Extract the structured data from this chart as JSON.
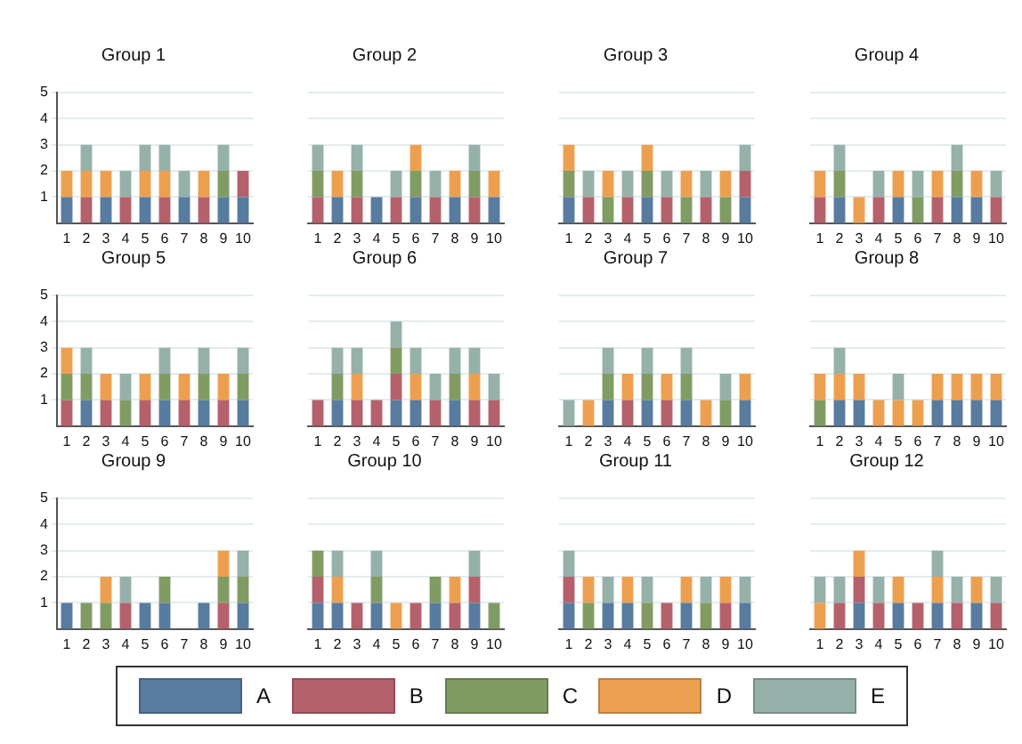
{
  "chart_data": [
    {
      "type": "bar",
      "title": "Group 1",
      "categories": [
        "1",
        "2",
        "3",
        "4",
        "5",
        "6",
        "7",
        "8",
        "9",
        "10"
      ],
      "stacked": true,
      "ylim": [
        0,
        5
      ],
      "yticks": [
        1,
        2,
        3,
        4,
        5
      ],
      "grid": "y",
      "legend": "bottom",
      "series": [
        {
          "name": "A",
          "color": "#587ba0",
          "values": [
            1,
            0,
            1,
            0,
            1,
            0,
            1,
            0,
            1,
            1
          ]
        },
        {
          "name": "B",
          "color": "#b5616b",
          "values": [
            0,
            1,
            0,
            1,
            0,
            1,
            0,
            1,
            0,
            1
          ]
        },
        {
          "name": "C",
          "color": "#809c63",
          "values": [
            0,
            0,
            0,
            0,
            0,
            0,
            0,
            0,
            1,
            0
          ]
        },
        {
          "name": "D",
          "color": "#eca04f",
          "values": [
            1,
            1,
            1,
            0,
            1,
            1,
            0,
            1,
            0,
            0
          ]
        },
        {
          "name": "E",
          "color": "#96b0aa",
          "values": [
            0,
            1,
            0,
            1,
            1,
            1,
            1,
            0,
            1,
            0
          ]
        }
      ]
    },
    {
      "type": "bar",
      "title": "Group 2",
      "categories": [
        "1",
        "2",
        "3",
        "4",
        "5",
        "6",
        "7",
        "8",
        "9",
        "10"
      ],
      "stacked": true,
      "ylim": [
        0,
        5
      ],
      "yticks": [
        1,
        2,
        3,
        4,
        5
      ],
      "grid": "y",
      "tick_labels": "x",
      "series": [
        {
          "color": "#587ba0",
          "values": [
            0,
            1,
            0,
            1,
            0,
            1,
            0,
            1,
            0,
            1
          ]
        },
        {
          "color": "#b5616b",
          "values": [
            1,
            0,
            1,
            0,
            1,
            0,
            1,
            0,
            1,
            0
          ]
        },
        {
          "color": "#809c63",
          "values": [
            1,
            0,
            1,
            0,
            0,
            1,
            0,
            0,
            1,
            0
          ]
        },
        {
          "color": "#eca04f",
          "values": [
            0,
            1,
            0,
            0,
            0,
            1,
            0,
            1,
            0,
            1
          ]
        },
        {
          "color": "#96b0aa",
          "values": [
            1,
            0,
            1,
            0,
            1,
            0,
            1,
            0,
            1,
            0
          ]
        }
      ]
    },
    {
      "type": "bar",
      "title": "Group 3",
      "categories": [
        "1",
        "2",
        "3",
        "4",
        "5",
        "6",
        "7",
        "8",
        "9",
        "10"
      ],
      "stacked": true,
      "ylim": [
        0,
        5
      ],
      "yticks": [
        1,
        2,
        3,
        4,
        5
      ],
      "grid": "y",
      "tick_labels": "x",
      "series": [
        {
          "color": "#587ba0",
          "values": [
            1,
            0,
            0,
            0,
            1,
            0,
            0,
            0,
            0,
            1
          ]
        },
        {
          "color": "#b5616b",
          "values": [
            0,
            1,
            0,
            1,
            0,
            1,
            0,
            1,
            0,
            1
          ]
        },
        {
          "color": "#809c63",
          "values": [
            1,
            0,
            1,
            0,
            1,
            0,
            1,
            0,
            1,
            0
          ]
        },
        {
          "color": "#eca04f",
          "values": [
            1,
            0,
            1,
            0,
            1,
            0,
            1,
            0,
            1,
            0
          ]
        },
        {
          "color": "#96b0aa",
          "values": [
            0,
            1,
            0,
            1,
            0,
            1,
            0,
            1,
            0,
            1
          ]
        }
      ]
    },
    {
      "type": "bar",
      "title": "Group 4",
      "categories": [
        "1",
        "2",
        "3",
        "4",
        "5",
        "6",
        "7",
        "8",
        "9",
        "10"
      ],
      "stacked": true,
      "ylim": [
        0,
        5
      ],
      "yticks": [
        1,
        2,
        3,
        4,
        5
      ],
      "grid": "y",
      "tick_labels": "x",
      "series": [
        {
          "color": "#587ba0",
          "values": [
            0,
            1,
            0,
            0,
            1,
            0,
            0,
            1,
            1,
            0
          ]
        },
        {
          "color": "#b5616b",
          "values": [
            1,
            0,
            0,
            1,
            0,
            0,
            1,
            0,
            0,
            1
          ]
        },
        {
          "color": "#809c63",
          "values": [
            0,
            1,
            0,
            0,
            0,
            1,
            0,
            1,
            0,
            0
          ]
        },
        {
          "color": "#eca04f",
          "values": [
            1,
            0,
            1,
            0,
            1,
            0,
            1,
            0,
            1,
            0
          ]
        },
        {
          "color": "#96b0aa",
          "values": [
            0,
            1,
            0,
            1,
            0,
            1,
            0,
            1,
            0,
            1
          ]
        }
      ]
    },
    {
      "type": "bar",
      "title": "Group 5",
      "categories": [
        "1",
        "2",
        "3",
        "4",
        "5",
        "6",
        "7",
        "8",
        "9",
        "10"
      ],
      "stacked": true,
      "ylim": [
        0,
        5
      ],
      "yticks": [
        1,
        2,
        3,
        4,
        5
      ],
      "grid": "y",
      "series": [
        {
          "color": "#587ba0",
          "values": [
            0,
            1,
            0,
            0,
            0,
            1,
            0,
            1,
            0,
            1
          ]
        },
        {
          "color": "#b5616b",
          "values": [
            1,
            0,
            1,
            0,
            1,
            0,
            1,
            0,
            1,
            0
          ]
        },
        {
          "color": "#809c63",
          "values": [
            1,
            1,
            0,
            1,
            0,
            1,
            0,
            1,
            0,
            1
          ]
        },
        {
          "color": "#eca04f",
          "values": [
            1,
            0,
            1,
            0,
            1,
            0,
            1,
            0,
            1,
            0
          ]
        },
        {
          "color": "#96b0aa",
          "values": [
            0,
            1,
            0,
            1,
            0,
            1,
            0,
            1,
            0,
            1
          ]
        }
      ]
    },
    {
      "type": "bar",
      "title": "Group 6",
      "categories": [
        "1",
        "2",
        "3",
        "4",
        "5",
        "6",
        "7",
        "8",
        "9",
        "10"
      ],
      "stacked": true,
      "ylim": [
        0,
        5
      ],
      "yticks": [
        1,
        2,
        3,
        4,
        5
      ],
      "grid": "y",
      "tick_labels": "x",
      "series": [
        {
          "color": "#587ba0",
          "values": [
            0,
            1,
            0,
            0,
            1,
            1,
            0,
            1,
            0,
            0
          ]
        },
        {
          "color": "#b5616b",
          "values": [
            1,
            0,
            1,
            1,
            1,
            0,
            1,
            0,
            1,
            1
          ]
        },
        {
          "color": "#809c63",
          "values": [
            0,
            1,
            0,
            0,
            1,
            0,
            0,
            1,
            0,
            0
          ]
        },
        {
          "color": "#eca04f",
          "values": [
            0,
            0,
            1,
            0,
            0,
            1,
            0,
            0,
            1,
            0
          ]
        },
        {
          "color": "#96b0aa",
          "values": [
            0,
            1,
            1,
            0,
            1,
            1,
            1,
            1,
            1,
            1
          ]
        }
      ]
    },
    {
      "type": "bar",
      "title": "Group 7",
      "categories": [
        "1",
        "2",
        "3",
        "4",
        "5",
        "6",
        "7",
        "8",
        "9",
        "10"
      ],
      "stacked": true,
      "ylim": [
        0,
        5
      ],
      "yticks": [
        1,
        2,
        3,
        4,
        5
      ],
      "grid": "y",
      "tick_labels": "x",
      "series": [
        {
          "color": "#587ba0",
          "values": [
            0,
            0,
            1,
            0,
            1,
            0,
            1,
            0,
            0,
            1
          ]
        },
        {
          "color": "#b5616b",
          "values": [
            0,
            0,
            0,
            1,
            0,
            1,
            0,
            0,
            0,
            0
          ]
        },
        {
          "color": "#809c63",
          "values": [
            0,
            0,
            1,
            0,
            1,
            0,
            1,
            0,
            1,
            0
          ]
        },
        {
          "color": "#eca04f",
          "values": [
            0,
            1,
            0,
            1,
            0,
            1,
            0,
            1,
            0,
            1
          ]
        },
        {
          "color": "#96b0aa",
          "values": [
            1,
            0,
            1,
            0,
            1,
            0,
            1,
            0,
            1,
            0
          ]
        }
      ]
    },
    {
      "type": "bar",
      "title": "Group 8",
      "categories": [
        "1",
        "2",
        "3",
        "4",
        "5",
        "6",
        "7",
        "8",
        "9",
        "10"
      ],
      "stacked": true,
      "ylim": [
        0,
        5
      ],
      "yticks": [
        1,
        2,
        3,
        4,
        5
      ],
      "grid": "y",
      "tick_labels": "x",
      "series": [
        {
          "color": "#587ba0",
          "values": [
            0,
            1,
            1,
            0,
            0,
            0,
            1,
            1,
            1,
            1
          ]
        },
        {
          "color": "#b5616b",
          "values": [
            0,
            0,
            0,
            0,
            0,
            0,
            0,
            0,
            0,
            0
          ]
        },
        {
          "color": "#809c63",
          "values": [
            1,
            0,
            0,
            0,
            0,
            0,
            0,
            0,
            0,
            0
          ]
        },
        {
          "color": "#eca04f",
          "values": [
            1,
            1,
            1,
            1,
            1,
            1,
            1,
            1,
            1,
            1
          ]
        },
        {
          "color": "#96b0aa",
          "values": [
            0,
            1,
            0,
            0,
            1,
            0,
            0,
            0,
            0,
            0
          ]
        }
      ]
    },
    {
      "type": "bar",
      "title": "Group 9",
      "categories": [
        "1",
        "2",
        "3",
        "4",
        "5",
        "6",
        "7",
        "8",
        "9",
        "10"
      ],
      "stacked": true,
      "ylim": [
        0,
        5
      ],
      "yticks": [
        1,
        2,
        3,
        4,
        5
      ],
      "grid": "y",
      "series": [
        {
          "color": "#587ba0",
          "values": [
            1,
            0,
            0,
            0,
            1,
            1,
            0,
            1,
            0,
            1
          ]
        },
        {
          "color": "#b5616b",
          "values": [
            0,
            0,
            0,
            1,
            0,
            0,
            0,
            0,
            1,
            0
          ]
        },
        {
          "color": "#809c63",
          "values": [
            0,
            1,
            1,
            0,
            0,
            1,
            0,
            0,
            1,
            1
          ]
        },
        {
          "color": "#eca04f",
          "values": [
            0,
            0,
            1,
            0,
            0,
            0,
            0,
            0,
            1,
            0
          ]
        },
        {
          "color": "#96b0aa",
          "values": [
            0,
            0,
            0,
            1,
            0,
            0,
            0,
            0,
            0,
            1
          ]
        }
      ]
    },
    {
      "type": "bar",
      "title": "Group 10",
      "categories": [
        "1",
        "2",
        "3",
        "4",
        "5",
        "6",
        "7",
        "8",
        "9",
        "10"
      ],
      "stacked": true,
      "ylim": [
        0,
        5
      ],
      "yticks": [
        1,
        2,
        3,
        4,
        5
      ],
      "grid": "y",
      "tick_labels": "x",
      "series": [
        {
          "color": "#587ba0",
          "values": [
            1,
            1,
            0,
            1,
            0,
            0,
            1,
            0,
            1,
            0
          ]
        },
        {
          "color": "#b5616b",
          "values": [
            1,
            0,
            1,
            0,
            0,
            1,
            0,
            1,
            1,
            0
          ]
        },
        {
          "color": "#809c63",
          "values": [
            1,
            0,
            0,
            1,
            0,
            0,
            1,
            0,
            0,
            1
          ]
        },
        {
          "color": "#eca04f",
          "values": [
            0,
            1,
            0,
            0,
            1,
            0,
            0,
            1,
            0,
            0
          ]
        },
        {
          "color": "#96b0aa",
          "values": [
            0,
            1,
            0,
            1,
            0,
            0,
            0,
            0,
            1,
            0
          ]
        }
      ]
    },
    {
      "type": "bar",
      "title": "Group 11",
      "categories": [
        "1",
        "2",
        "3",
        "4",
        "5",
        "6",
        "7",
        "8",
        "9",
        "10"
      ],
      "stacked": true,
      "ylim": [
        0,
        5
      ],
      "yticks": [
        1,
        2,
        3,
        4,
        5
      ],
      "grid": "y",
      "tick_labels": "x",
      "series": [
        {
          "color": "#587ba0",
          "values": [
            1,
            0,
            1,
            1,
            0,
            0,
            1,
            0,
            0,
            1
          ]
        },
        {
          "color": "#b5616b",
          "values": [
            1,
            0,
            0,
            0,
            0,
            1,
            0,
            0,
            1,
            0
          ]
        },
        {
          "color": "#809c63",
          "values": [
            0,
            1,
            0,
            0,
            1,
            0,
            0,
            1,
            0,
            0
          ]
        },
        {
          "color": "#eca04f",
          "values": [
            0,
            1,
            0,
            1,
            0,
            0,
            1,
            0,
            1,
            0
          ]
        },
        {
          "color": "#96b0aa",
          "values": [
            1,
            0,
            1,
            0,
            1,
            0,
            0,
            1,
            0,
            1
          ]
        }
      ]
    },
    {
      "type": "bar",
      "title": "Group 12",
      "categories": [
        "1",
        "2",
        "3",
        "4",
        "5",
        "6",
        "7",
        "8",
        "9",
        "10"
      ],
      "stacked": true,
      "ylim": [
        0,
        5
      ],
      "yticks": [
        1,
        2,
        3,
        4,
        5
      ],
      "grid": "y",
      "tick_labels": "x",
      "series": [
        {
          "color": "#587ba0",
          "values": [
            0,
            0,
            1,
            0,
            1,
            0,
            1,
            0,
            1,
            0
          ]
        },
        {
          "color": "#b5616b",
          "values": [
            0,
            1,
            1,
            1,
            0,
            1,
            0,
            1,
            0,
            1
          ]
        },
        {
          "color": "#809c63",
          "values": [
            0,
            0,
            0,
            0,
            0,
            0,
            0,
            0,
            0,
            0
          ]
        },
        {
          "color": "#eca04f",
          "values": [
            1,
            0,
            1,
            0,
            1,
            0,
            1,
            0,
            1,
            0
          ]
        },
        {
          "color": "#96b0aa",
          "values": [
            1,
            1,
            0,
            1,
            0,
            0,
            1,
            1,
            0,
            1
          ]
        }
      ]
    }
  ]
}
